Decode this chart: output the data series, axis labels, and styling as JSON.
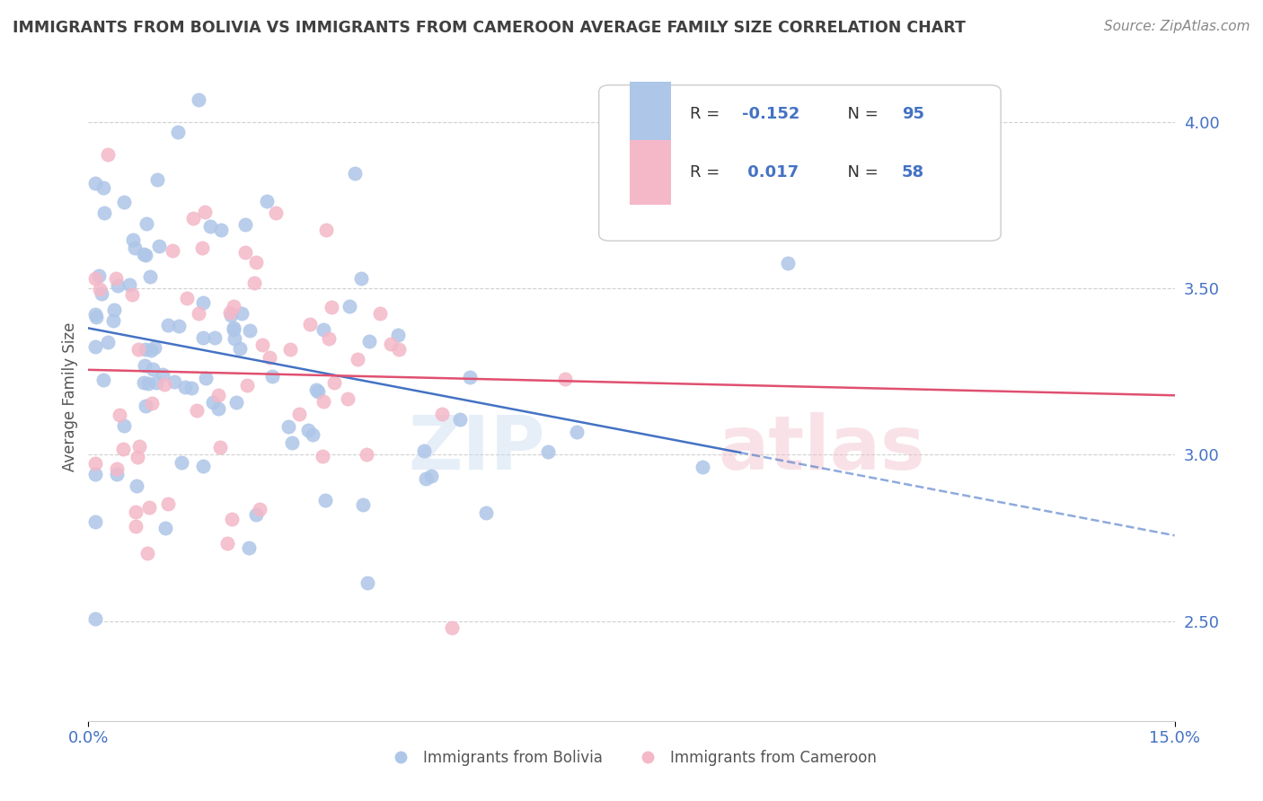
{
  "title": "IMMIGRANTS FROM BOLIVIA VS IMMIGRANTS FROM CAMEROON AVERAGE FAMILY SIZE CORRELATION CHART",
  "source": "Source: ZipAtlas.com",
  "ylabel": "Average Family Size",
  "xlim": [
    0.0,
    0.15
  ],
  "ylim": [
    2.2,
    4.15
  ],
  "yticks": [
    2.5,
    3.0,
    3.5,
    4.0
  ],
  "xtick_labels": [
    "0.0%",
    "15.0%"
  ],
  "bolivia_color": "#aec6e8",
  "cameroon_color": "#f4b8c8",
  "bolivia_line_color": "#4472c4",
  "cameroon_line_color": "#e05070",
  "bolivia_R": -0.152,
  "bolivia_N": 95,
  "cameroon_R": 0.017,
  "cameroon_N": 58,
  "background_color": "#ffffff",
  "grid_color": "#d0d0d0",
  "axis_color": "#4472c4",
  "title_color": "#404040",
  "legend_text_color": "#4472c4",
  "source_color": "#888888",
  "ylabel_color": "#555555"
}
